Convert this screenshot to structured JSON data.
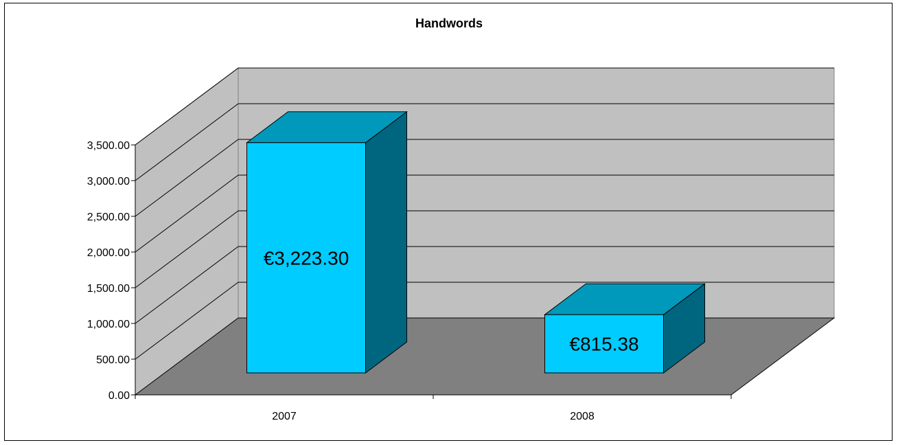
{
  "chart_data": {
    "type": "bar",
    "title": "Handwords",
    "categories": [
      "2007",
      "2008"
    ],
    "values": [
      3223.3,
      815.38
    ],
    "data_labels": [
      "€3,223.30",
      "€815.38"
    ],
    "ylim": [
      0,
      3500
    ],
    "yticks": [
      0,
      500,
      1000,
      1500,
      2000,
      2500,
      3000,
      3500
    ],
    "ytick_labels": [
      "0.00",
      "500.00",
      "1,000.00",
      "1,500.00",
      "2,000.00",
      "2,500.00",
      "3,000.00",
      "3,500.00"
    ],
    "xlabel": "",
    "ylabel": "",
    "grid": true,
    "legend": "none",
    "style": "3d-column",
    "colors": {
      "bar_front": "#00ccff",
      "bar_top": "#0099bb",
      "bar_side": "#006680",
      "back_wall": "#c0c0c0",
      "side_wall": "#c0c0c0",
      "floor": "#808080"
    }
  }
}
